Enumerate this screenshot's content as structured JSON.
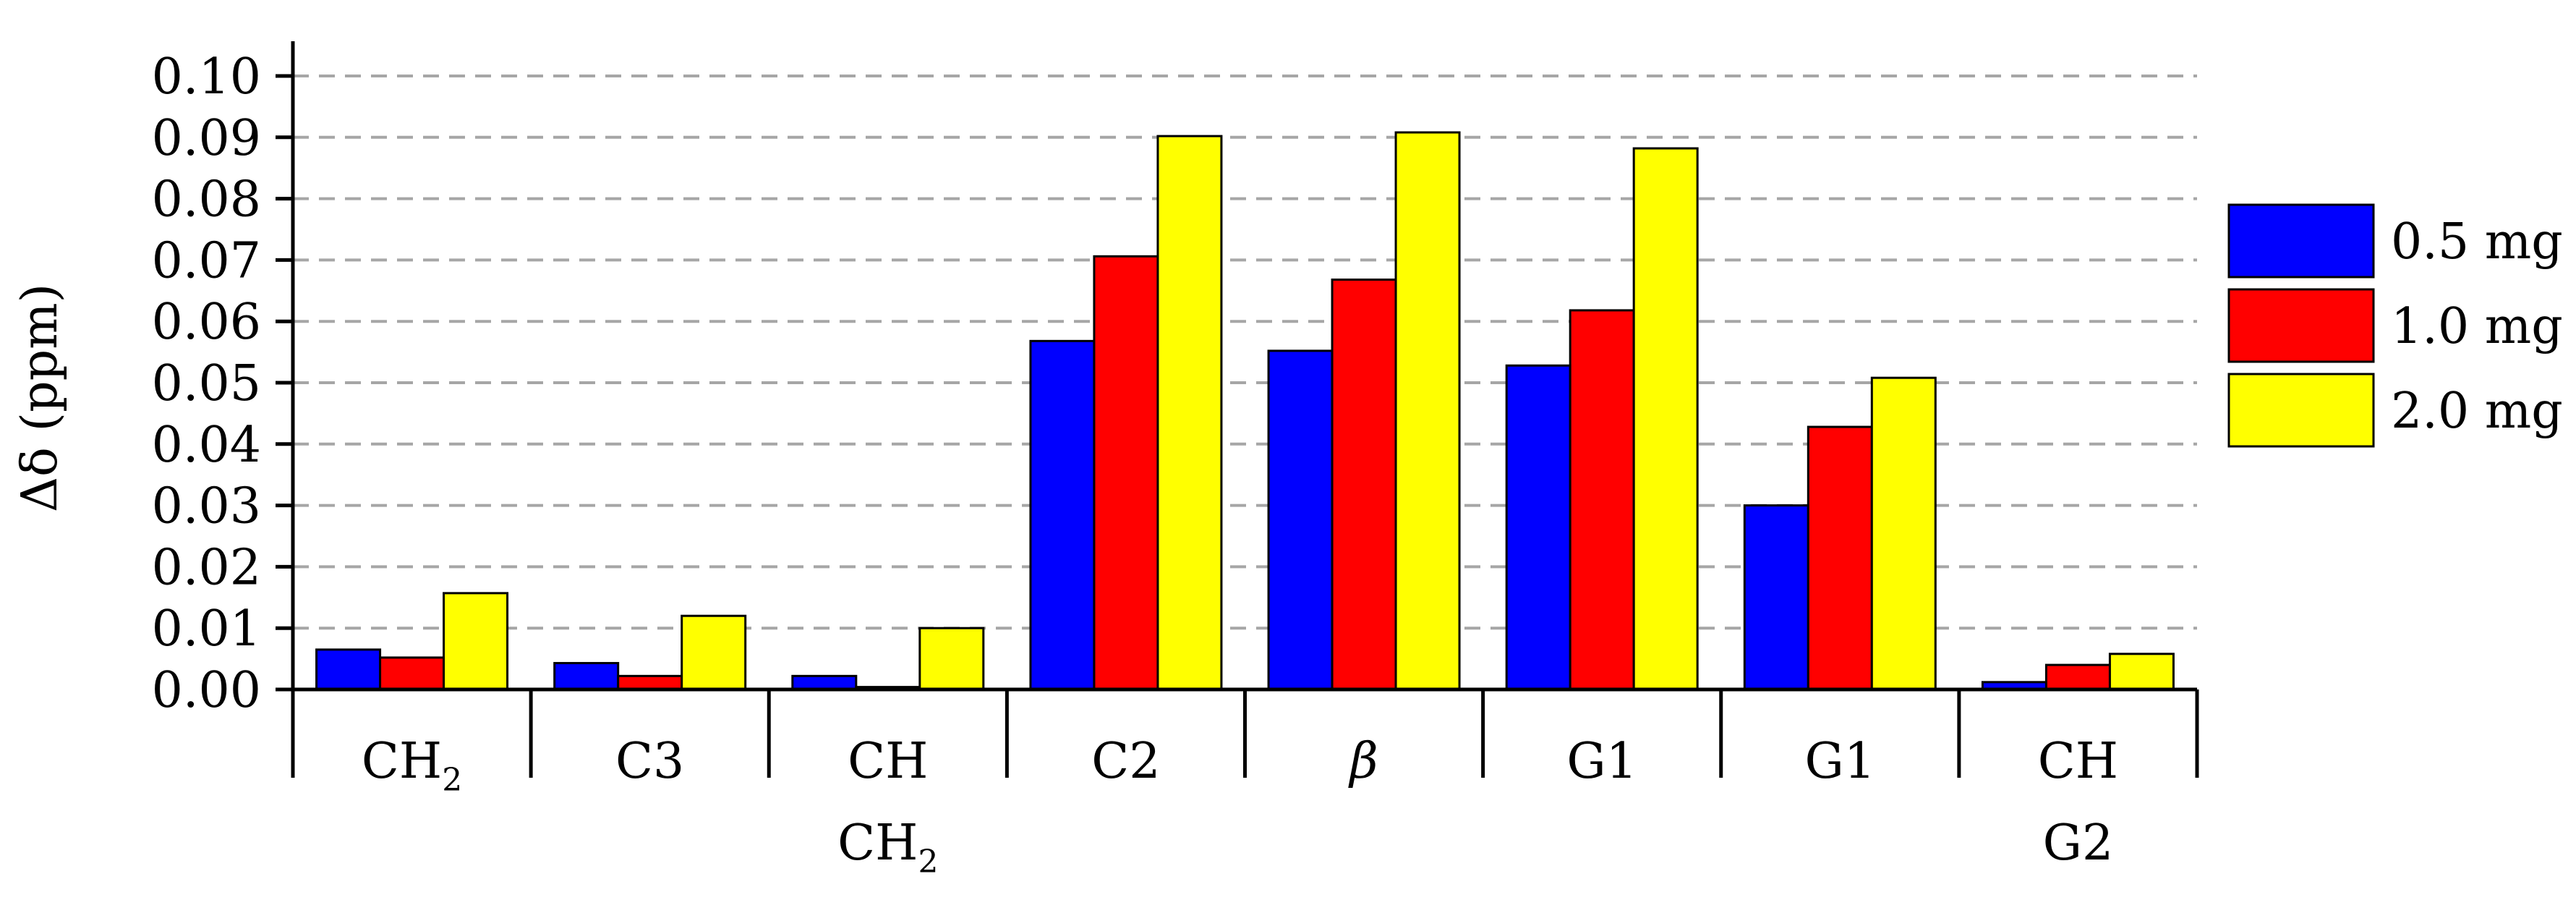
{
  "chart_data": {
    "type": "bar",
    "title": "",
    "xlabel": "",
    "ylabel": "Δδ (ppm)",
    "ylim": [
      0,
      0.1
    ],
    "yticks": [
      "0.00",
      "0.01",
      "0.02",
      "0.03",
      "0.04",
      "0.05",
      "0.06",
      "0.07",
      "0.08",
      "0.09",
      "0.10"
    ],
    "grid": "horizontal dashed",
    "legend_position": "right",
    "categories": [
      {
        "label": "CH",
        "sub": "2",
        "label2": "",
        "sub2": "",
        "italic": false
      },
      {
        "label": "C3",
        "sub": "",
        "label2": "",
        "sub2": "",
        "italic": false
      },
      {
        "label": "CH",
        "sub": "",
        "label2": "CH",
        "sub2": "2",
        "italic": false
      },
      {
        "label": "C2",
        "sub": "",
        "label2": "",
        "sub2": "",
        "italic": false
      },
      {
        "label": "β",
        "sub": "",
        "label2": "",
        "sub2": "",
        "italic": true
      },
      {
        "label": "G1",
        "sub": "",
        "label2": "",
        "sub2": "",
        "italic": false
      },
      {
        "label": "G1",
        "sub": "",
        "label2": "",
        "sub2": "",
        "italic": false
      },
      {
        "label": "CH",
        "sub": "",
        "label2": "G2",
        "sub2": "",
        "italic": false
      }
    ],
    "series": [
      {
        "name": "0.5 mg",
        "color": "#0000ff",
        "values": [
          0.0065,
          0.0043,
          0.0022,
          0.0568,
          0.0552,
          0.0528,
          0.03,
          0.0012
        ]
      },
      {
        "name": "1.0 mg",
        "color": "#ff0000",
        "values": [
          0.0052,
          0.0022,
          0.0004,
          0.0706,
          0.0668,
          0.0618,
          0.0428,
          0.004
        ]
      },
      {
        "name": "2.0 mg",
        "color": "#ffff00",
        "values": [
          0.0157,
          0.012,
          0.01,
          0.0902,
          0.0908,
          0.0882,
          0.0508,
          0.0058
        ]
      }
    ]
  }
}
